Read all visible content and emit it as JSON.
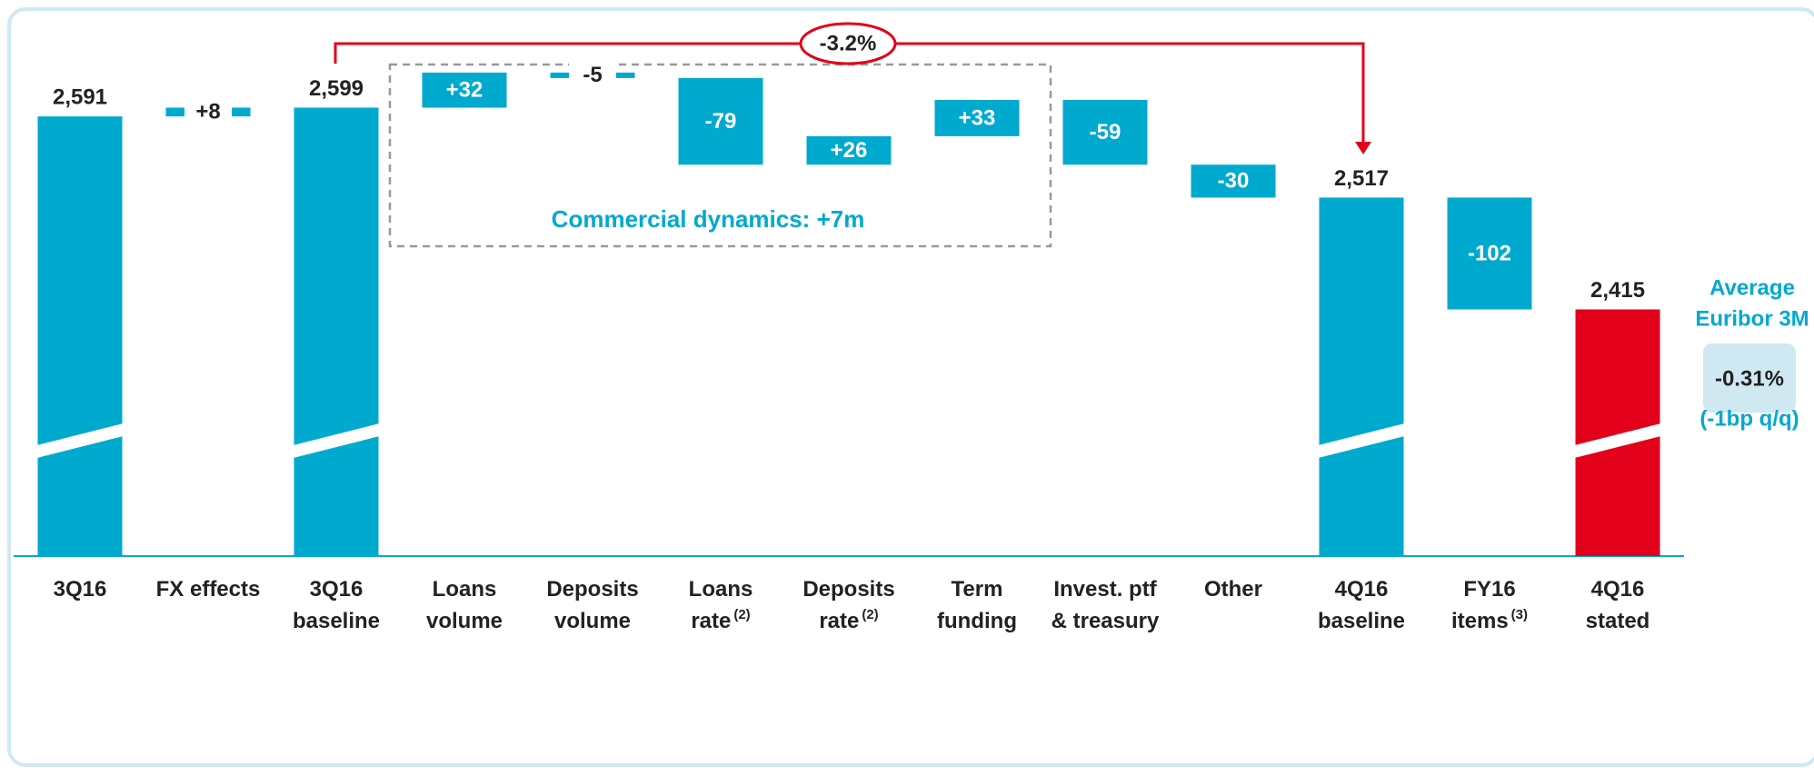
{
  "chart_data": {
    "type": "waterfall",
    "categories": [
      [
        "3Q16"
      ],
      [
        "FX effects"
      ],
      [
        "3Q16",
        "baseline"
      ],
      [
        "Loans",
        "volume"
      ],
      [
        "Deposits",
        "volume"
      ],
      [
        "Loans",
        "rate"
      ],
      [
        "Deposits",
        "rate"
      ],
      [
        "Term",
        "funding"
      ],
      [
        "Invest. ptf",
        "& treasury"
      ],
      [
        "Other"
      ],
      [
        "4Q16",
        "baseline"
      ],
      [
        "FY16",
        "items"
      ],
      [
        "4Q16",
        "stated"
      ]
    ],
    "category_notes": [
      null,
      null,
      null,
      null,
      null,
      "(2)",
      "(2)",
      null,
      null,
      null,
      null,
      "(3)",
      null
    ],
    "measures": [
      "total",
      "relative",
      "total",
      "relative",
      "relative",
      "relative",
      "relative",
      "relative",
      "relative",
      "relative",
      "total",
      "relative",
      "total"
    ],
    "values": [
      2591,
      8,
      2599,
      32,
      -5,
      -79,
      26,
      33,
      -59,
      -30,
      2517,
      -102,
      2415
    ],
    "value_labels": [
      "2,591",
      "+8",
      "2,599",
      "+32",
      "-5",
      "-79",
      "+26",
      "+33",
      "-59",
      "-30",
      "2,517",
      "-102",
      "2,415"
    ],
    "colors": [
      "#00a9ce",
      "#00a9ce",
      "#00a9ce",
      "#00a9ce",
      "#00a9ce",
      "#00a9ce",
      "#00a9ce",
      "#00a9ce",
      "#00a9ce",
      "#00a9ce",
      "#00a9ce",
      "#00a9ce",
      "#e2001a"
    ],
    "ylim": [
      2190,
      2640
    ],
    "axis_break": true,
    "change_annotation": "-3.2%",
    "group_annotation": "Commercial dynamics: +7m",
    "side_panel": {
      "title": [
        "Average",
        "Euribor 3M"
      ],
      "value": "-0.31%",
      "note": "(-1bp q/q)"
    }
  }
}
